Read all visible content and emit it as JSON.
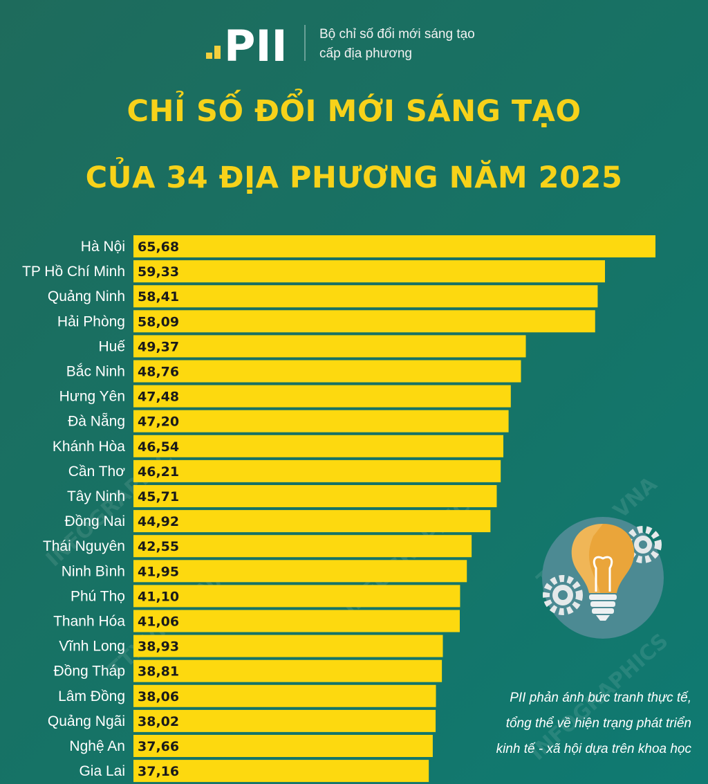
{
  "header": {
    "logo_text": "PII",
    "logo_subtitle_line1": "Bộ chỉ số đổi mới sáng tạo",
    "logo_subtitle_line2": "cấp địa phương"
  },
  "title_line1": "CHỈ SỐ ĐỔI MỚI SÁNG TẠO",
  "title_line2": "CỦA 34 ĐỊA PHƯƠNG NĂM 2025",
  "note": {
    "line1": "PII phản ánh bức tranh thực tế,",
    "line2": "tổng thể về hiện trạng phát triển",
    "line3": "kinh tế - xã hội dựa trên khoa học"
  },
  "watermark": {
    "text1": "INFOGRAPHICS",
    "text2": "TTXVN – VNA"
  },
  "colors": {
    "background": "#167366",
    "bar": "#fdd90f",
    "title": "#f7d21a",
    "label": "#ffffff"
  },
  "icons": [
    "pii-logo-icon",
    "lightbulb-icon",
    "gear-icon"
  ],
  "chart_data": {
    "type": "bar",
    "orientation": "horizontal",
    "categories": [
      "Hà Nội",
      "TP Hồ Chí Minh",
      "Quảng Ninh",
      "Hải Phòng",
      "Huế",
      "Bắc Ninh",
      "Hưng Yên",
      "Đà Nẵng",
      "Khánh Hòa",
      "Cần Thơ",
      "Tây Ninh",
      "Đồng Nai",
      "Thái Nguyên",
      "Ninh Bình",
      "Phú Thọ",
      "Thanh Hóa",
      "Vĩnh Long",
      "Đồng Tháp",
      "Lâm Đồng",
      "Quảng Ngãi",
      "Nghệ An",
      "Gia Lai"
    ],
    "values": [
      65.68,
      59.33,
      58.41,
      58.09,
      49.37,
      48.76,
      47.48,
      47.2,
      46.54,
      46.21,
      45.71,
      44.92,
      42.55,
      41.95,
      41.1,
      41.06,
      38.93,
      38.81,
      38.06,
      38.02,
      37.66,
      37.16
    ],
    "value_labels": [
      "65,68",
      "59,33",
      "58,41",
      "58,09",
      "49,37",
      "48,76",
      "47,48",
      "47,20",
      "46,54",
      "46,21",
      "45,71",
      "44,92",
      "42,55",
      "41,95",
      "41,10",
      "41,06",
      "38,93",
      "38,81",
      "38,06",
      "38,02",
      "37,66",
      "37,16"
    ],
    "xlim": [
      0,
      65.68
    ],
    "grid": false,
    "legend": "none"
  }
}
